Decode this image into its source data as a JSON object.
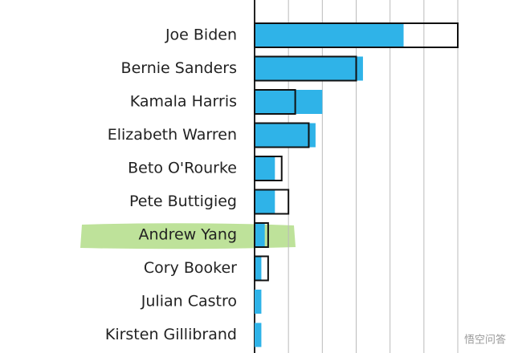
{
  "chart_data": {
    "type": "bar",
    "orientation": "horizontal",
    "categories": [
      "Joe Biden",
      "Bernie Sanders",
      "Kamala Harris",
      "Elizabeth Warren",
      "Beto O'Rourke",
      "Pete Buttigieg",
      "Andrew Yang",
      "Cory Booker",
      "Julian Castro",
      "Kirsten Gillibrand"
    ],
    "series": [
      {
        "color": "#2fb3e8",
        "style": "fill",
        "values": [
          22,
          16,
          10,
          9,
          3,
          3,
          1.5,
          1,
          1,
          1
        ]
      },
      {
        "color": "#111111",
        "style": "outline",
        "values": [
          30,
          15,
          6,
          8,
          4,
          5,
          2,
          2,
          null,
          null
        ]
      }
    ],
    "xlim": [
      0,
      30
    ],
    "xticks": [
      0,
      5,
      10,
      15,
      20,
      25,
      30
    ],
    "grid": true,
    "watermark": "悟空问答"
  }
}
